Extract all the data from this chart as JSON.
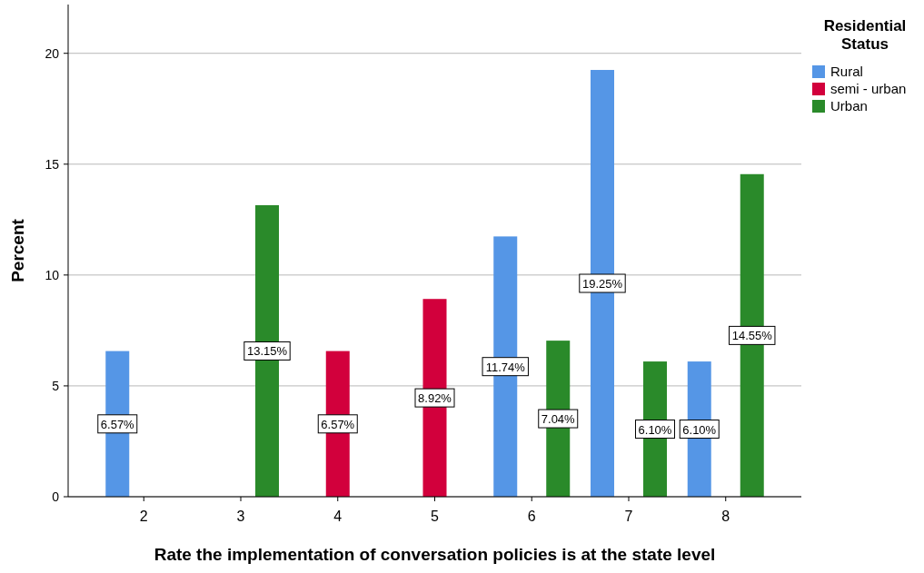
{
  "chart_data": {
    "type": "bar",
    "xlabel": "Rate the implementation of conversation policies is at the state level",
    "ylabel": "Percent",
    "legend_title": "Residential Status",
    "categories": [
      "2",
      "3",
      "4",
      "5",
      "6",
      "7",
      "8"
    ],
    "series": [
      {
        "name": "Rural",
        "color": "#5596e6",
        "values": [
          6.57,
          null,
          null,
          null,
          11.74,
          19.25,
          6.1
        ],
        "value_labels": [
          "6.57%",
          null,
          null,
          null,
          "11.74%",
          "19.25%",
          "6.10%"
        ]
      },
      {
        "name": "semi - urban",
        "color": "#d2003c",
        "values": [
          null,
          null,
          6.57,
          8.92,
          null,
          null,
          null
        ],
        "value_labels": [
          null,
          null,
          "6.57%",
          "8.92%",
          null,
          null,
          null
        ]
      },
      {
        "name": "Urban",
        "color": "#2a8a2a",
        "values": [
          null,
          13.15,
          null,
          null,
          7.04,
          6.1,
          14.55
        ],
        "value_labels": [
          null,
          "13.15%",
          null,
          null,
          "7.04%",
          "6.10%",
          "14.55%"
        ]
      }
    ],
    "ylim": [
      0,
      22.2
    ],
    "yticks": [
      0,
      5,
      10,
      15,
      20
    ],
    "grid": "y",
    "legend": "top right"
  }
}
